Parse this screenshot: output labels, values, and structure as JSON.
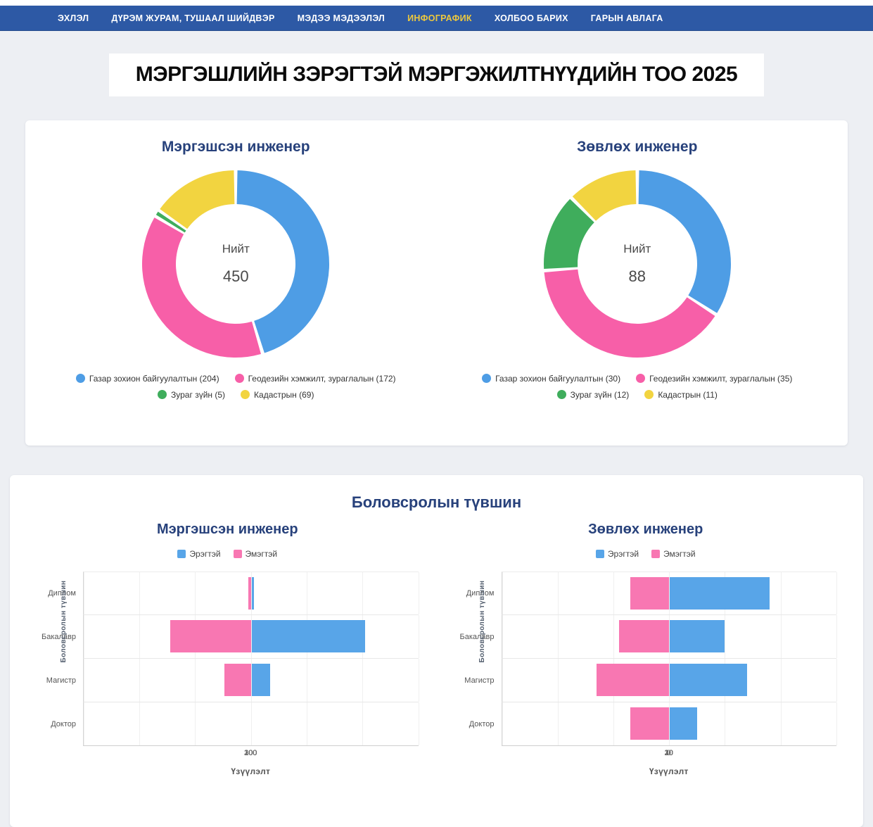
{
  "nav": {
    "items": [
      {
        "label": "ЭХЛЭЛ",
        "active": false
      },
      {
        "label": "ДҮРЭМ ЖУРАМ, ТУШААЛ ШИЙДВЭР",
        "active": false
      },
      {
        "label": "МЭДЭЭ МЭДЭЭЛЭЛ",
        "active": false
      },
      {
        "label": "ИНФОГРАФИК",
        "active": true
      },
      {
        "label": "ХОЛБОО БАРИХ",
        "active": false
      },
      {
        "label": "ГАРЫН АВЛАГА",
        "active": false
      }
    ]
  },
  "header": {
    "title": "МЭРГЭШЛИЙН ЗЭРЭГТЭЙ МЭРГЭЖИЛТНҮҮДИЙН ТОО 2025"
  },
  "sections": {
    "education_title": "Боловсролын түвшин"
  },
  "colors": {
    "nav_bg": "#2D59A5",
    "nav_active": "#EDC83D",
    "title_navy": "#27417B",
    "blue": "#4E9DE5",
    "pink": "#F75FA8",
    "green": "#3FAD5C",
    "yellow": "#F2D440",
    "bar_blue": "#58A5E8",
    "bar_pink": "#F877B2"
  },
  "chart_data": [
    {
      "type": "pie",
      "variant": "donut",
      "title": "Мэргэшсэн инженер",
      "center_label": "Нийт",
      "total": 450,
      "slices": [
        {
          "label": "Газар зохион байгуулалтын",
          "value": 204,
          "color": "#4E9DE5"
        },
        {
          "label": "Геодезийн хэмжилт, зураглалын",
          "value": 172,
          "color": "#F75FA8"
        },
        {
          "label": "Зураг зүйн",
          "value": 5,
          "color": "#3FAD5C"
        },
        {
          "label": "Кадастрын",
          "value": 69,
          "color": "#F2D440"
        }
      ],
      "legend_position": "bottom"
    },
    {
      "type": "pie",
      "variant": "donut",
      "title": "Зөвлөх инженер",
      "center_label": "Нийт",
      "total": 88,
      "slices": [
        {
          "label": "Газар зохион байгуулалтын",
          "value": 30,
          "color": "#4E9DE5"
        },
        {
          "label": "Геодезийн хэмжилт, зураглалын",
          "value": 35,
          "color": "#F75FA8"
        },
        {
          "label": "Зураг зүйн",
          "value": 12,
          "color": "#3FAD5C"
        },
        {
          "label": "Кадастрын",
          "value": 11,
          "color": "#F2D440"
        }
      ],
      "legend_position": "bottom"
    },
    {
      "type": "bar",
      "variant": "diverging-horizontal",
      "title": "Мэргэшсэн инженер",
      "categories": [
        "Диплом",
        "Бакалавр",
        "Магистр",
        "Доктор"
      ],
      "series": [
        {
          "name": "Эрэгтэй",
          "color": "#58A5E8",
          "side": "right",
          "values": [
            5,
            205,
            35,
            0
          ]
        },
        {
          "name": "Эмэгтэй",
          "color": "#F877B2",
          "side": "left",
          "values": [
            5,
            145,
            48,
            0
          ]
        }
      ],
      "xlabel": "Үзүүлэлт",
      "ylabel": "Боловсролын түвшин",
      "xmax": 300,
      "ticks": [
        300,
        200,
        100,
        0,
        100,
        200,
        300
      ],
      "grid": true,
      "legend_position": "top"
    },
    {
      "type": "bar",
      "variant": "diverging-horizontal",
      "title": "Зөвлөх инженер",
      "categories": [
        "Диплом",
        "Бакалавр",
        "Магистр",
        "Доктор"
      ],
      "series": [
        {
          "name": "Эрэгтэй",
          "color": "#58A5E8",
          "side": "right",
          "values": [
            18,
            10,
            14,
            5
          ]
        },
        {
          "name": "Эмэгтэй",
          "color": "#F877B2",
          "side": "left",
          "values": [
            7,
            9,
            13,
            7
          ]
        }
      ],
      "xlabel": "Үзүүлэлт",
      "ylabel": "Боловсролын түвшин",
      "xmax": 30,
      "ticks": [
        30,
        20,
        10,
        0,
        10,
        20,
        30
      ],
      "grid": true,
      "legend_position": "top"
    }
  ]
}
